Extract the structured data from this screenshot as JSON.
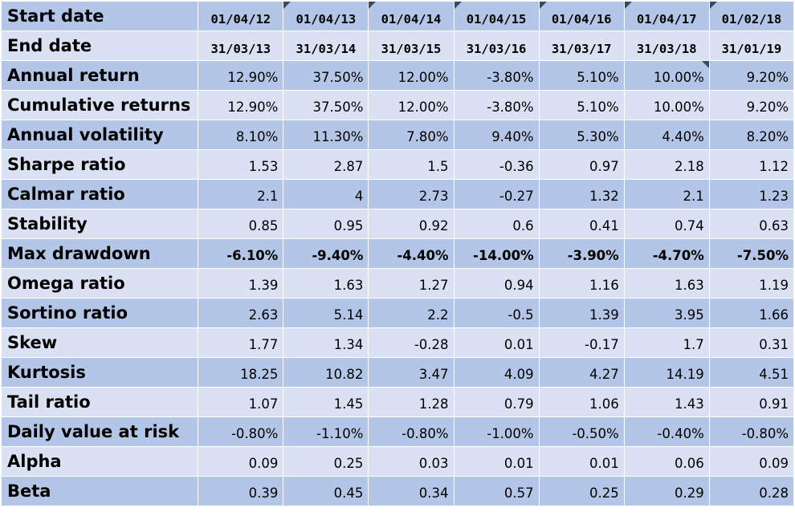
{
  "header": {
    "start_label": "Start date",
    "end_label": "End date",
    "start_dates": [
      "01/04/12",
      "01/04/13",
      "01/04/14",
      "01/04/15",
      "01/04/16",
      "01/04/17",
      "01/02/18"
    ],
    "end_dates": [
      "31/03/13",
      "31/03/14",
      "31/03/15",
      "31/03/16",
      "31/03/17",
      "31/03/18",
      "31/01/19"
    ]
  },
  "rows": [
    {
      "label": "Annual return",
      "values": [
        "12.90%",
        "37.50%",
        "12.00%",
        "-3.80%",
        "5.10%",
        "10.00%",
        "9.20%"
      ]
    },
    {
      "label": "Cumulative returns",
      "values": [
        "12.90%",
        "37.50%",
        "12.00%",
        "-3.80%",
        "5.10%",
        "10.00%",
        "9.20%"
      ]
    },
    {
      "label": "Annual volatility",
      "values": [
        "8.10%",
        "11.30%",
        "7.80%",
        "9.40%",
        "5.30%",
        "4.40%",
        "8.20%"
      ]
    },
    {
      "label": "Sharpe ratio",
      "values": [
        "1.53",
        "2.87",
        "1.5",
        "-0.36",
        "0.97",
        "2.18",
        "1.12"
      ]
    },
    {
      "label": "Calmar ratio",
      "values": [
        "2.1",
        "4",
        "2.73",
        "-0.27",
        "1.32",
        "2.1",
        "1.23"
      ]
    },
    {
      "label": "Stability",
      "values": [
        "0.85",
        "0.95",
        "0.92",
        "0.6",
        "0.41",
        "0.74",
        "0.63"
      ]
    },
    {
      "label": "Max drawdown",
      "values": [
        "-6.10%",
        "-9.40%",
        "-4.40%",
        "-14.00%",
        "-3.90%",
        "-4.70%",
        "-7.50%"
      ]
    },
    {
      "label": "Omega ratio",
      "values": [
        "1.39",
        "1.63",
        "1.27",
        "0.94",
        "1.16",
        "1.63",
        "1.19"
      ]
    },
    {
      "label": "Sortino ratio",
      "values": [
        "2.63",
        "5.14",
        "2.2",
        "-0.5",
        "1.39",
        "3.95",
        "1.66"
      ]
    },
    {
      "label": "Skew",
      "values": [
        "1.77",
        "1.34",
        "-0.28",
        "0.01",
        "-0.17",
        "1.7",
        "0.31"
      ]
    },
    {
      "label": "Kurtosis",
      "values": [
        "18.25",
        "10.82",
        "3.47",
        "4.09",
        "4.27",
        "14.19",
        "4.51"
      ]
    },
    {
      "label": "Tail ratio",
      "values": [
        "1.07",
        "1.45",
        "1.28",
        "0.79",
        "1.06",
        "1.43",
        "0.91"
      ]
    },
    {
      "label": "Daily value at risk",
      "values": [
        "-0.80%",
        "-1.10%",
        "-0.80%",
        "-1.00%",
        "-0.50%",
        "-0.40%",
        "-0.80%"
      ]
    },
    {
      "label": "Alpha",
      "values": [
        "0.09",
        "0.25",
        "0.03",
        "0.01",
        "0.01",
        "0.06",
        "0.09"
      ]
    },
    {
      "label": "Beta",
      "values": [
        "0.39",
        "0.45",
        "0.34",
        "0.57",
        "0.25",
        "0.29",
        "0.28"
      ]
    }
  ],
  "colors": {
    "row_dark": "#b4c6e7",
    "row_light": "#d9e1f2",
    "cell_border": "#ffffff",
    "comment_marker": "#3b4a5a"
  }
}
